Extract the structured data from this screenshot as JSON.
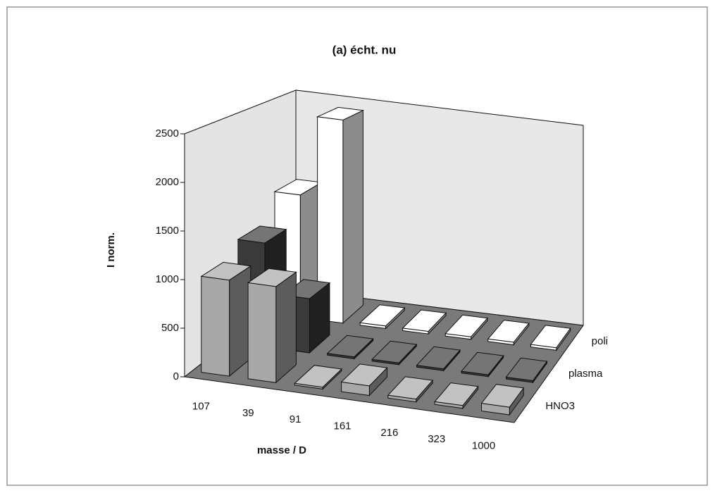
{
  "chart_data": {
    "type": "bar3d",
    "title": "(a) écht. nu",
    "xlabel": "masse / D",
    "ylabel": "I norm.",
    "categories": [
      "107",
      "39",
      "91",
      "161",
      "216",
      "323",
      "1000"
    ],
    "series": [
      {
        "name": "HNO3",
        "color": "#a8a8a8",
        "values": [
          1000,
          1000,
          20,
          100,
          30,
          30,
          80
        ]
      },
      {
        "name": "plasma",
        "color": "#3a3a3a",
        "values": [
          1150,
          600,
          20,
          20,
          20,
          20,
          20
        ]
      },
      {
        "name": "poli",
        "color": "#ffffff",
        "values": [
          1450,
          2400,
          30,
          30,
          30,
          30,
          30
        ]
      }
    ],
    "ylim": [
      0,
      2500
    ],
    "yticks": [
      0,
      500,
      1000,
      1500,
      2000,
      2500
    ],
    "grid": false
  }
}
